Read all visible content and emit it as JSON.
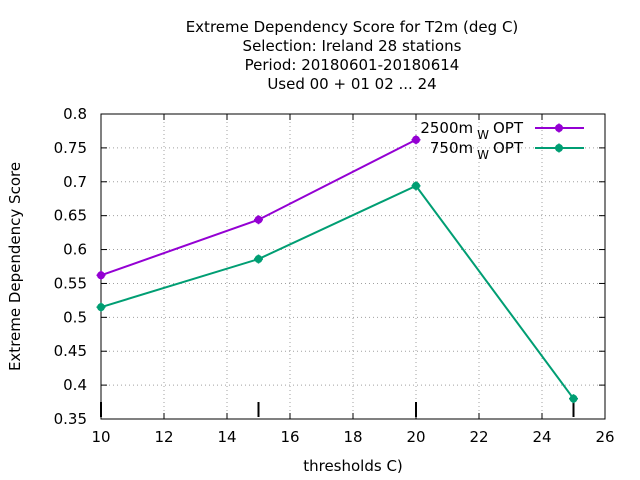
{
  "chart_data": {
    "type": "line",
    "title_lines": [
      "Extreme Dependency Score  for T2m (deg C)",
      "Selection: Ireland     28 stations",
      "Period: 20180601-20180614",
      "Used  00 + 01 02 ... 24"
    ],
    "xlabel": "thresholds C)",
    "ylabel": "Extreme Dependency Score",
    "xlim": [
      10,
      26
    ],
    "ylim": [
      0.35,
      0.8
    ],
    "xticks": [
      10,
      12,
      14,
      16,
      18,
      20,
      22,
      24,
      26
    ],
    "xtick_labels": [
      "10",
      "12",
      "14",
      "16",
      "18",
      "20",
      "22",
      "24",
      "26"
    ],
    "yticks": [
      0.35,
      0.4,
      0.45,
      0.5,
      0.55,
      0.6,
      0.65,
      0.7,
      0.75,
      0.8
    ],
    "ytick_labels": [
      "0.35",
      "0.4",
      "0.45",
      "0.5",
      "0.55",
      "0.6",
      "0.65",
      "0.7",
      "0.75",
      "0.8"
    ],
    "grid": true,
    "legend_position": "top-right",
    "count_marks_x": [
      10,
      15,
      20,
      25
    ],
    "series": [
      {
        "name": "2500m",
        "subscript": "W",
        "suffix": "OPT",
        "color": "#9400d3",
        "x": [
          10,
          15,
          20
        ],
        "values": [
          0.562,
          0.644,
          0.762
        ]
      },
      {
        "name": "750m",
        "subscript": "W",
        "suffix": "OPT",
        "color": "#009e73",
        "x": [
          10,
          15,
          20,
          25
        ],
        "values": [
          0.515,
          0.586,
          0.694,
          0.38
        ]
      }
    ]
  }
}
